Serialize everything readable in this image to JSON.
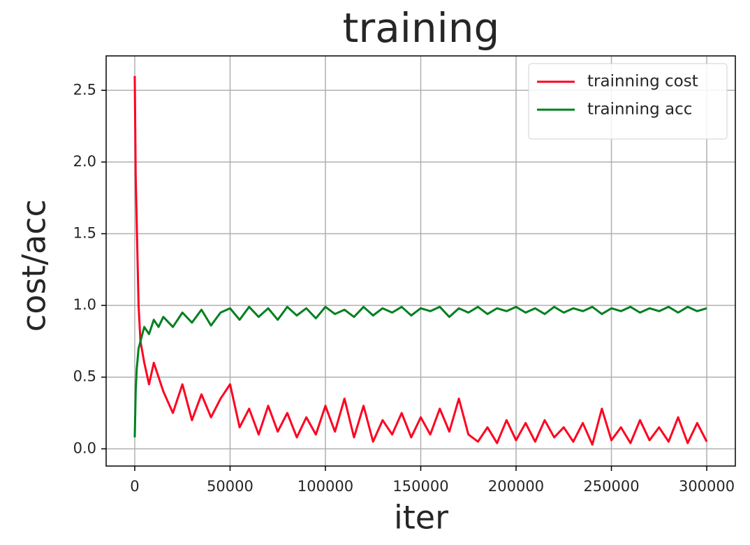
{
  "chart_data": {
    "type": "line",
    "title": "training",
    "x_label": "iter",
    "y_label": "cost/acc",
    "x": [
      0,
      500,
      1000,
      2000,
      3000,
      5000,
      7500,
      10000,
      12500,
      15000,
      20000,
      25000,
      30000,
      35000,
      40000,
      45000,
      50000,
      55000,
      60000,
      65000,
      70000,
      75000,
      80000,
      85000,
      90000,
      95000,
      100000,
      105000,
      110000,
      115000,
      120000,
      125000,
      130000,
      135000,
      140000,
      145000,
      150000,
      155000,
      160000,
      165000,
      170000,
      175000,
      180000,
      185000,
      190000,
      195000,
      200000,
      205000,
      210000,
      215000,
      220000,
      225000,
      230000,
      235000,
      240000,
      245000,
      250000,
      255000,
      260000,
      265000,
      270000,
      275000,
      280000,
      285000,
      290000,
      295000,
      300000
    ],
    "series": [
      {
        "name": "trainning cost",
        "color": "#ff0020",
        "values": [
          2.6,
          1.9,
          1.6,
          1.0,
          0.75,
          0.6,
          0.45,
          0.6,
          0.5,
          0.4,
          0.25,
          0.45,
          0.2,
          0.38,
          0.22,
          0.35,
          0.45,
          0.15,
          0.28,
          0.1,
          0.3,
          0.12,
          0.25,
          0.08,
          0.22,
          0.1,
          0.3,
          0.12,
          0.35,
          0.08,
          0.3,
          0.05,
          0.2,
          0.1,
          0.25,
          0.08,
          0.22,
          0.1,
          0.28,
          0.12,
          0.35,
          0.1,
          0.05,
          0.15,
          0.04,
          0.2,
          0.06,
          0.18,
          0.05,
          0.2,
          0.08,
          0.15,
          0.05,
          0.18,
          0.03,
          0.28,
          0.06,
          0.15,
          0.04,
          0.2,
          0.06,
          0.15,
          0.05,
          0.22,
          0.04,
          0.18,
          0.05
        ]
      },
      {
        "name": "trainning acc",
        "color": "#008020",
        "values": [
          0.08,
          0.4,
          0.55,
          0.7,
          0.75,
          0.85,
          0.8,
          0.9,
          0.85,
          0.92,
          0.85,
          0.95,
          0.88,
          0.97,
          0.86,
          0.95,
          0.98,
          0.9,
          0.99,
          0.92,
          0.98,
          0.9,
          0.99,
          0.93,
          0.98,
          0.91,
          0.99,
          0.94,
          0.97,
          0.92,
          0.99,
          0.93,
          0.98,
          0.95,
          0.99,
          0.93,
          0.98,
          0.96,
          0.99,
          0.92,
          0.98,
          0.95,
          0.99,
          0.94,
          0.98,
          0.96,
          0.99,
          0.95,
          0.98,
          0.94,
          0.99,
          0.95,
          0.98,
          0.96,
          0.99,
          0.94,
          0.98,
          0.96,
          0.99,
          0.95,
          0.98,
          0.96,
          0.99,
          0.95,
          0.99,
          0.96,
          0.98
        ]
      }
    ],
    "xlim": [
      -15000,
      315000
    ],
    "xticks": [
      0,
      50000,
      100000,
      150000,
      200000,
      250000,
      300000
    ],
    "ylim": [
      -0.12,
      2.74
    ],
    "yticks": [
      {
        "value": 0,
        "label": "0.0"
      },
      0.5,
      {
        "value": 1,
        "label": "1.0"
      },
      1.5,
      {
        "value": 2,
        "label": "2.0"
      },
      2.5
    ],
    "grid": true,
    "legend": "upper right"
  }
}
